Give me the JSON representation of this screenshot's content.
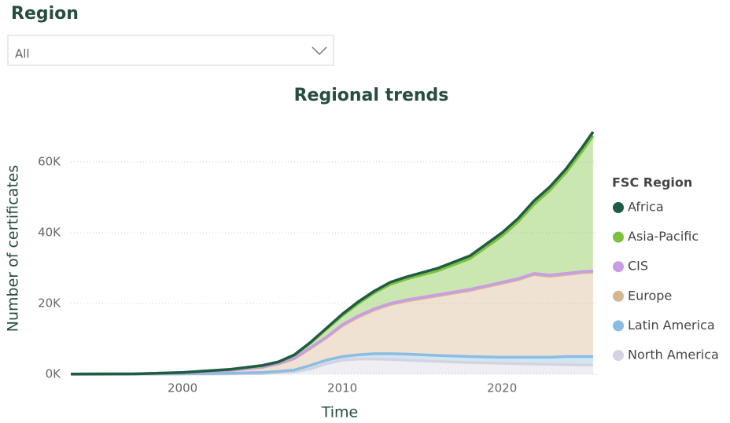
{
  "slicer": {
    "label": "Region",
    "value": "All"
  },
  "chart_data": {
    "type": "area",
    "stacked": true,
    "title": "Regional trends",
    "x_label": "Time",
    "y_label": "Number of certificates",
    "legend_title": "FSC Region",
    "legend": "right",
    "grid": true,
    "x": [
      1993,
      1997,
      2000,
      2003,
      2005,
      2006,
      2007,
      2008,
      2009,
      2010,
      2011,
      2012,
      2013,
      2014,
      2016,
      2018,
      2020,
      2021,
      2022,
      2023,
      2024,
      2025,
      2025.7
    ],
    "xlim": [
      1993,
      2026
    ],
    "xticks": [
      2000,
      2010,
      2020
    ],
    "ylim": [
      0,
      72000
    ],
    "yticks": [
      {
        "value": 0,
        "label": "0K"
      },
      {
        "value": 20000,
        "label": "20K"
      },
      {
        "value": 40000,
        "label": "40K"
      },
      {
        "value": 60000,
        "label": "60K"
      }
    ],
    "series": [
      {
        "name": "Africa",
        "color": "#1f5b45",
        "values": [
          0,
          0,
          0,
          50,
          100,
          100,
          150,
          200,
          300,
          400,
          500,
          500,
          600,
          600,
          700,
          800,
          900,
          900,
          1000,
          1000,
          1000,
          1100,
          1100
        ]
      },
      {
        "name": "Asia-Pacific",
        "color": "#7cc23b",
        "values": [
          0,
          0,
          100,
          250,
          400,
          400,
          850,
          1300,
          2200,
          2600,
          3500,
          4500,
          5400,
          5900,
          6800,
          8700,
          13100,
          16100,
          19500,
          24000,
          28500,
          33900,
          38200
        ]
      },
      {
        "name": "CIS",
        "color": "#c99de6",
        "values": [
          0,
          0,
          0,
          0,
          50,
          100,
          100,
          200,
          200,
          300,
          300,
          300,
          300,
          300,
          300,
          300,
          300,
          300,
          300,
          300,
          300,
          300,
          300
        ]
      },
      {
        "name": "Europe",
        "color": "#d6b68e",
        "values": [
          30,
          50,
          250,
          800,
          1450,
          2100,
          3200,
          4800,
          6300,
          8700,
          10700,
          12400,
          13900,
          15000,
          16900,
          18700,
          20900,
          21900,
          23400,
          22900,
          23200,
          23700,
          23900
        ]
      },
      {
        "name": "Latin America",
        "color": "#8bbde2",
        "values": [
          10,
          30,
          100,
          200,
          300,
          400,
          500,
          1000,
          1000,
          1000,
          1200,
          1500,
          1600,
          1700,
          1700,
          1700,
          1700,
          1800,
          1900,
          2000,
          2300,
          2400,
          2400
        ]
      },
      {
        "name": "North America",
        "color": "#d4d4e0",
        "values": [
          10,
          20,
          50,
          100,
          200,
          400,
          700,
          1500,
          3000,
          4000,
          4300,
          4300,
          4200,
          4000,
          3600,
          3300,
          3100,
          3000,
          2900,
          2800,
          2700,
          2600,
          2600
        ]
      }
    ]
  }
}
